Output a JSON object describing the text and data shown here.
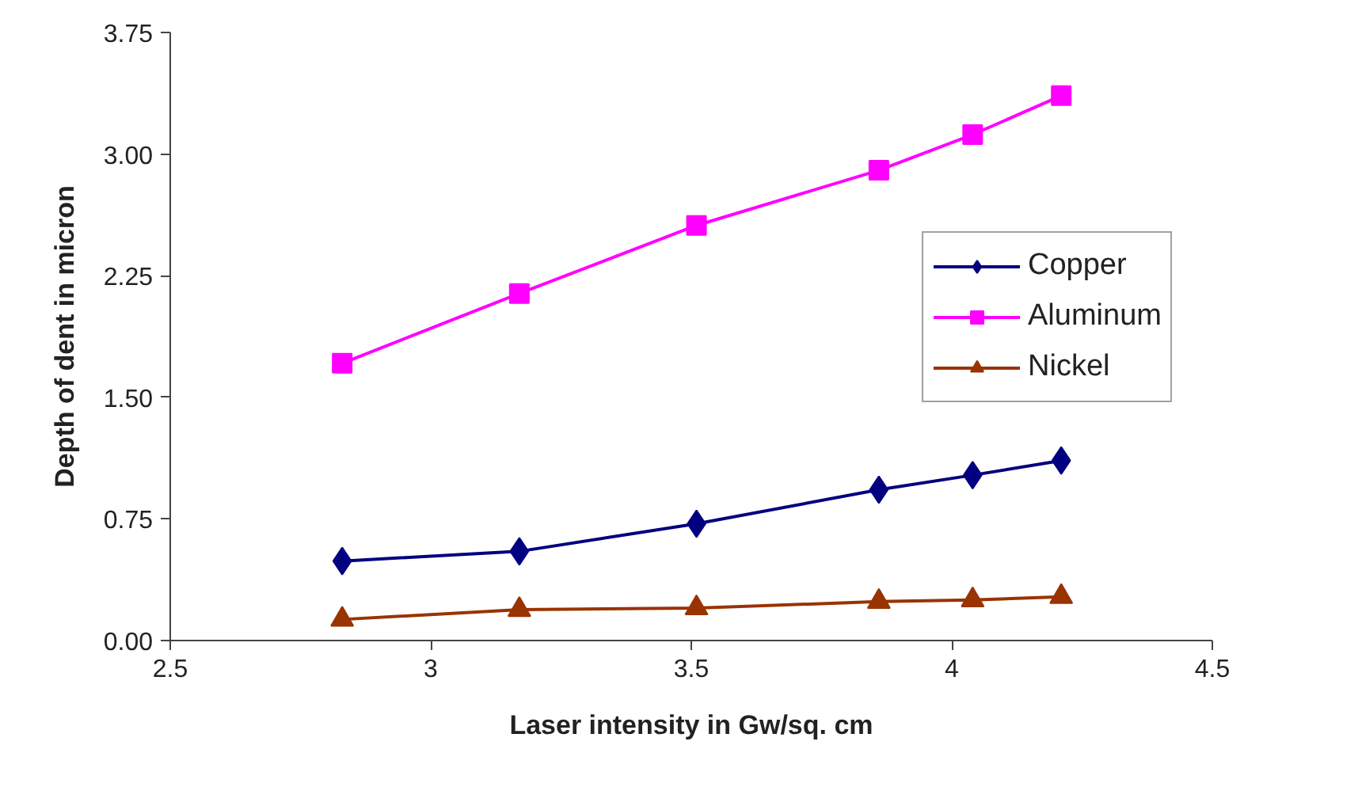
{
  "chart_data": {
    "type": "line",
    "xlabel": "Laser intensity in Gw/sq. cm",
    "ylabel": "Depth of dent in micron",
    "x": [
      2.83,
      3.17,
      3.51,
      3.86,
      4.04,
      4.21
    ],
    "series": [
      {
        "name": "Copper",
        "color": "#000080",
        "marker": "diamond",
        "values": [
          0.49,
          0.55,
          0.72,
          0.93,
          1.02,
          1.11
        ]
      },
      {
        "name": "Aluminum",
        "color": "#ff00ff",
        "marker": "square",
        "values": [
          1.71,
          2.14,
          2.56,
          2.9,
          3.12,
          3.36
        ]
      },
      {
        "name": "Nickel",
        "color": "#993300",
        "marker": "triangle",
        "values": [
          0.13,
          0.19,
          0.2,
          0.24,
          0.25,
          0.27
        ]
      }
    ],
    "xlim": [
      2.5,
      4.5
    ],
    "xticks": [
      2.5,
      3,
      3.5,
      4,
      4.5
    ],
    "ylim": [
      0,
      3.75
    ],
    "yticks": [
      {
        "value": 0,
        "label": "0.00"
      },
      {
        "value": 0.75,
        "label": "0.75"
      },
      {
        "value": 1.5,
        "label": "1.50"
      },
      {
        "value": 2.25,
        "label": "2.25"
      },
      {
        "value": 3,
        "label": "3.00"
      },
      {
        "value": 3.75,
        "label": "3.75"
      }
    ],
    "legend": "right",
    "grid": false,
    "line_style": "solid"
  }
}
